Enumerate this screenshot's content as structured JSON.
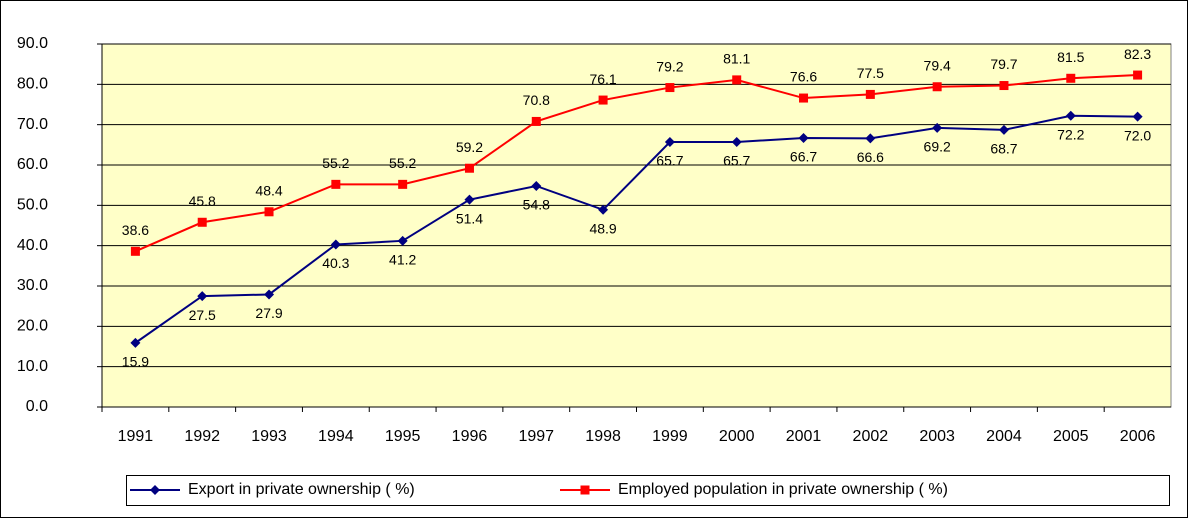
{
  "chart_data": {
    "type": "line",
    "categories": [
      "1991",
      "1992",
      "1993",
      "1994",
      "1995",
      "1996",
      "1997",
      "1998",
      "1999",
      "2000",
      "2001",
      "2002",
      "2003",
      "2004",
      "2005",
      "2006"
    ],
    "series": [
      {
        "name": "Export in private ownership ( %)",
        "color": "#000080",
        "marker": "diamond",
        "values": [
          15.9,
          27.5,
          27.9,
          40.3,
          41.2,
          51.4,
          54.8,
          48.9,
          65.7,
          65.7,
          66.7,
          66.6,
          69.2,
          68.7,
          72.2,
          72.0
        ],
        "value_labels": [
          "15.9",
          "27.5",
          "27.9",
          "40.3",
          "41.2",
          "51.4",
          "54.8",
          "48.9",
          "65.7",
          "65.7",
          "66.7",
          "66.6",
          "69.2",
          "68.7",
          "72.2",
          "72.0"
        ]
      },
      {
        "name": "Employed population in private ownership ( %)",
        "color": "#ff0000",
        "marker": "square",
        "values": [
          38.6,
          45.8,
          48.4,
          55.2,
          55.2,
          59.2,
          70.8,
          76.1,
          79.2,
          81.1,
          76.6,
          77.5,
          79.4,
          79.7,
          81.5,
          82.3
        ],
        "value_labels": [
          "38.6",
          "45.8",
          "48.4",
          "55.2",
          "55.2",
          "59.2",
          "70.8",
          "76.1",
          "79.2",
          "81.1",
          "76.6",
          "77.5",
          "79.4",
          "79.7",
          "81.5",
          "82.3"
        ]
      }
    ],
    "ylim": [
      0,
      90
    ],
    "yticks": [
      {
        "value": 0,
        "label": "0.0"
      },
      {
        "value": 10,
        "label": "10.0"
      },
      {
        "value": 20,
        "label": "20.0"
      },
      {
        "value": 30,
        "label": "30.0"
      },
      {
        "value": 40,
        "label": "40.0"
      },
      {
        "value": 50,
        "label": "50.0"
      },
      {
        "value": 60,
        "label": "60.0"
      },
      {
        "value": 70,
        "label": "70.0"
      },
      {
        "value": 80,
        "label": "80.0"
      },
      {
        "value": 90,
        "label": "90.0"
      }
    ],
    "grid": true,
    "legend": "bottom"
  }
}
